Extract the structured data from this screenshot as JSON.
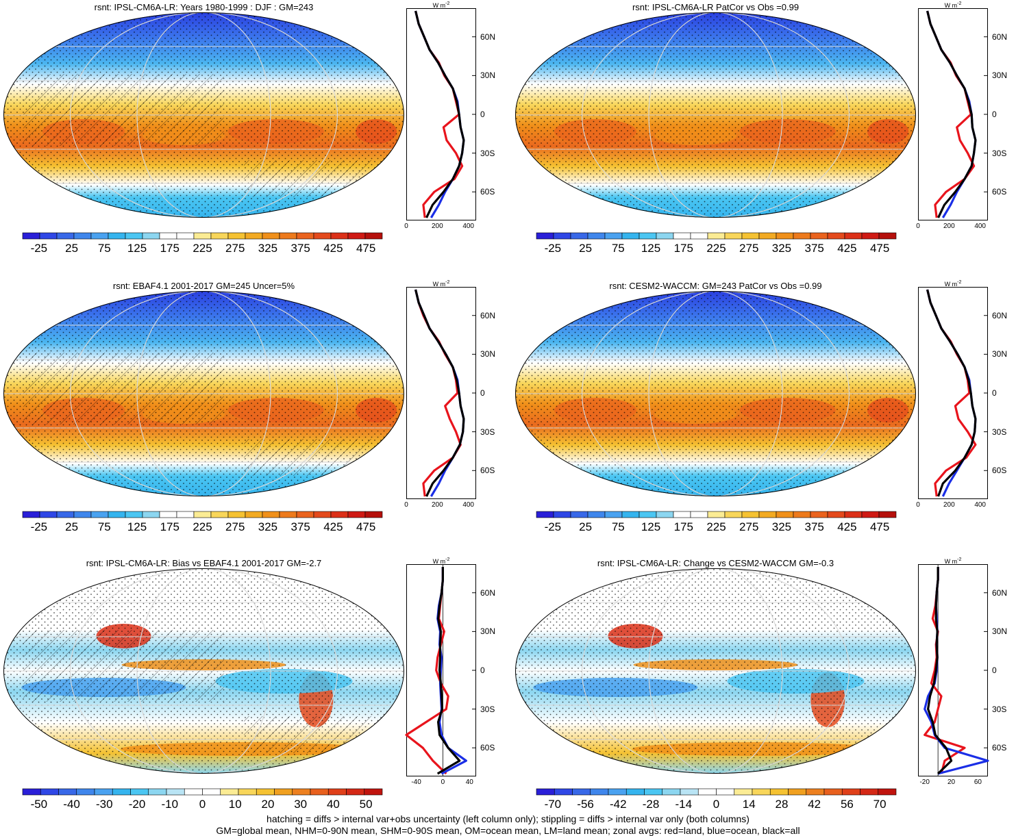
{
  "chart_data": [
    {
      "type": "heatmap",
      "title": "rsnt: IPSL-CM6A-LR: Years 1980-1999 : DJF : GM=243",
      "colorbar": {
        "ticks": [
          "-25",
          "25",
          "75",
          "125",
          "175",
          "225",
          "275",
          "325",
          "375",
          "425",
          "475"
        ],
        "nbins": 21,
        "palette": "full"
      },
      "zonal": {
        "xticks": [
          "0",
          "200",
          "400"
        ],
        "unit": "W m-2",
        "xlim": [
          0,
          450
        ],
        "lat": [
          80,
          70,
          60,
          50,
          40,
          30,
          20,
          10,
          0,
          -10,
          -20,
          -30,
          -40,
          -50,
          -60,
          -70,
          -80
        ],
        "land": [
          60,
          80,
          115,
          150,
          210,
          245,
          300,
          320,
          340,
          240,
          260,
          320,
          360,
          310,
          180,
          110,
          120
        ],
        "ocean": [
          60,
          80,
          115,
          150,
          205,
          250,
          300,
          330,
          340,
          350,
          370,
          360,
          340,
          300,
          250,
          210,
          160
        ],
        "all": [
          60,
          80,
          115,
          150,
          205,
          250,
          300,
          325,
          340,
          350,
          370,
          360,
          340,
          300,
          240,
          170,
          130
        ]
      }
    },
    {
      "type": "heatmap",
      "title": "rsnt: IPSL-CM6A-LR PatCor vs Obs =0.99",
      "colorbar": {
        "ticks": [
          "-25",
          "25",
          "75",
          "125",
          "175",
          "225",
          "275",
          "325",
          "375",
          "425",
          "475"
        ],
        "nbins": 21,
        "palette": "full"
      },
      "zonal": {
        "xticks": [
          "0",
          "200",
          "400"
        ],
        "unit": "W m-2",
        "xlim": [
          0,
          450
        ],
        "lat": [
          80,
          70,
          60,
          50,
          40,
          30,
          20,
          10,
          0,
          -10,
          -20,
          -30,
          -40,
          -50,
          -60,
          -70,
          -80
        ],
        "land": [
          60,
          80,
          115,
          150,
          210,
          245,
          300,
          320,
          340,
          250,
          270,
          320,
          360,
          300,
          180,
          110,
          120
        ],
        "ocean": [
          60,
          80,
          115,
          150,
          205,
          250,
          300,
          330,
          345,
          350,
          370,
          360,
          345,
          300,
          250,
          210,
          160
        ],
        "all": [
          60,
          80,
          115,
          150,
          205,
          250,
          300,
          325,
          345,
          350,
          370,
          360,
          345,
          300,
          240,
          170,
          130
        ]
      }
    },
    {
      "type": "heatmap",
      "title": "rsnt: EBAF4.1 2001-2017 GM=245 Uncer=5%",
      "colorbar": {
        "ticks": [
          "-25",
          "25",
          "75",
          "125",
          "175",
          "225",
          "275",
          "325",
          "375",
          "425",
          "475"
        ],
        "nbins": 21,
        "palette": "full"
      },
      "zonal": {
        "xticks": [
          "0",
          "200",
          "400"
        ],
        "unit": "W m-2",
        "xlim": [
          0,
          450
        ],
        "lat": [
          80,
          70,
          60,
          50,
          40,
          30,
          20,
          10,
          0,
          -10,
          -20,
          -30,
          -40,
          -50,
          -60,
          -70,
          -80
        ],
        "land": [
          60,
          80,
          110,
          150,
          210,
          250,
          300,
          320,
          330,
          250,
          280,
          320,
          350,
          300,
          180,
          110,
          120
        ],
        "ocean": [
          60,
          80,
          115,
          150,
          205,
          255,
          300,
          330,
          340,
          350,
          370,
          365,
          345,
          300,
          250,
          210,
          160
        ],
        "all": [
          60,
          80,
          115,
          150,
          205,
          255,
          300,
          325,
          340,
          350,
          370,
          365,
          345,
          300,
          240,
          170,
          130
        ]
      }
    },
    {
      "type": "heatmap",
      "title": "rsnt: CESM2-WACCM: GM=243 PatCor vs Obs =0.99",
      "colorbar": {
        "ticks": [
          "-25",
          "25",
          "75",
          "125",
          "175",
          "225",
          "275",
          "325",
          "375",
          "425",
          "475"
        ],
        "nbins": 21,
        "palette": "full"
      },
      "zonal": {
        "xticks": [
          "0",
          "200",
          "400"
        ],
        "unit": "W m-2",
        "xlim": [
          0,
          450
        ],
        "lat": [
          80,
          70,
          60,
          50,
          40,
          30,
          20,
          10,
          0,
          -10,
          -20,
          -30,
          -40,
          -50,
          -60,
          -70,
          -80
        ],
        "land": [
          60,
          80,
          115,
          150,
          210,
          250,
          300,
          320,
          330,
          240,
          260,
          320,
          370,
          310,
          180,
          110,
          120
        ],
        "ocean": [
          60,
          80,
          115,
          150,
          205,
          255,
          300,
          330,
          340,
          350,
          370,
          365,
          345,
          300,
          250,
          200,
          160
        ],
        "all": [
          60,
          80,
          115,
          150,
          205,
          255,
          300,
          325,
          340,
          350,
          370,
          365,
          345,
          300,
          240,
          160,
          130
        ]
      }
    },
    {
      "type": "heatmap",
      "title": "rsnt: IPSL-CM6A-LR: Bias vs EBAF4.1 2001-2017 GM=-2.7",
      "colorbar": {
        "ticks": [
          "-50",
          "-40",
          "-30",
          "-20",
          "-10",
          "0",
          "10",
          "20",
          "30",
          "40",
          "50"
        ],
        "nbins": 20,
        "palette": "diff"
      },
      "zonal": {
        "xticks": [
          "-40",
          "0",
          "40"
        ],
        "unit": "W m-2",
        "xlim": [
          -55,
          50
        ],
        "lat": [
          80,
          70,
          60,
          50,
          40,
          30,
          20,
          10,
          0,
          -10,
          -20,
          -30,
          -40,
          -50,
          -60,
          -70,
          -80
        ],
        "land": [
          0,
          0,
          -2,
          -4,
          -6,
          2,
          -3,
          -8,
          -10,
          -3,
          8,
          5,
          -25,
          -55,
          -30,
          -15,
          5
        ],
        "ocean": [
          0,
          0,
          -2,
          -6,
          -8,
          -4,
          -5,
          -2,
          -3,
          -4,
          -3,
          -2,
          -5,
          -2,
          8,
          35,
          -2
        ],
        "all": [
          0,
          0,
          -2,
          -5,
          -7,
          -3,
          -4,
          -4,
          -5,
          -3,
          -2,
          -1,
          -7,
          -5,
          8,
          25,
          -8
        ]
      }
    },
    {
      "type": "heatmap",
      "title": "rsnt: IPSL-CM6A-LR: Change vs CESM2-WACCM GM=-0.3",
      "colorbar": {
        "ticks": [
          "-70",
          "-56",
          "-42",
          "-28",
          "-14",
          "0",
          "14",
          "28",
          "42",
          "56",
          "70"
        ],
        "nbins": 20,
        "palette": "diff"
      },
      "zonal": {
        "xticks": [
          "-20",
          "20",
          "60"
        ],
        "unit": "W m-2",
        "xlim": [
          -30,
          75
        ],
        "lat": [
          80,
          70,
          60,
          50,
          40,
          30,
          20,
          10,
          0,
          -10,
          -20,
          -30,
          -40,
          -50,
          -60,
          -70,
          -80
        ],
        "land": [
          0,
          0,
          -2,
          -4,
          -8,
          0,
          -3,
          -2,
          -5,
          -10,
          5,
          0,
          -5,
          -20,
          40,
          10,
          5
        ],
        "ocean": [
          0,
          0,
          -2,
          -3,
          -2,
          -1,
          -2,
          -1,
          -2,
          -5,
          -15,
          -20,
          -10,
          -5,
          10,
          75,
          0
        ],
        "all": [
          0,
          0,
          -2,
          -3,
          -3,
          -1,
          -2,
          -1,
          -3,
          -6,
          -12,
          -15,
          -8,
          -4,
          12,
          20,
          0
        ]
      }
    }
  ],
  "lat_labels": [
    "60N",
    "30N",
    "0",
    "30S",
    "60S"
  ],
  "unit_label": "W m",
  "unit_sup": "-2",
  "footer": {
    "line1": "hatching = diffs > internal var+obs uncertainty (left column only); stippling = diffs > internal var only (both columns)",
    "line2": "GM=global mean, NHM=0-90N mean, SHM=0-90S mean, OM=ocean mean, LM=land mean; zonal avgs: red=land, blue=ocean, black=all"
  },
  "colors": {
    "land": "#e8141c",
    "ocean": "#1a2ee6",
    "all": "#000000"
  }
}
